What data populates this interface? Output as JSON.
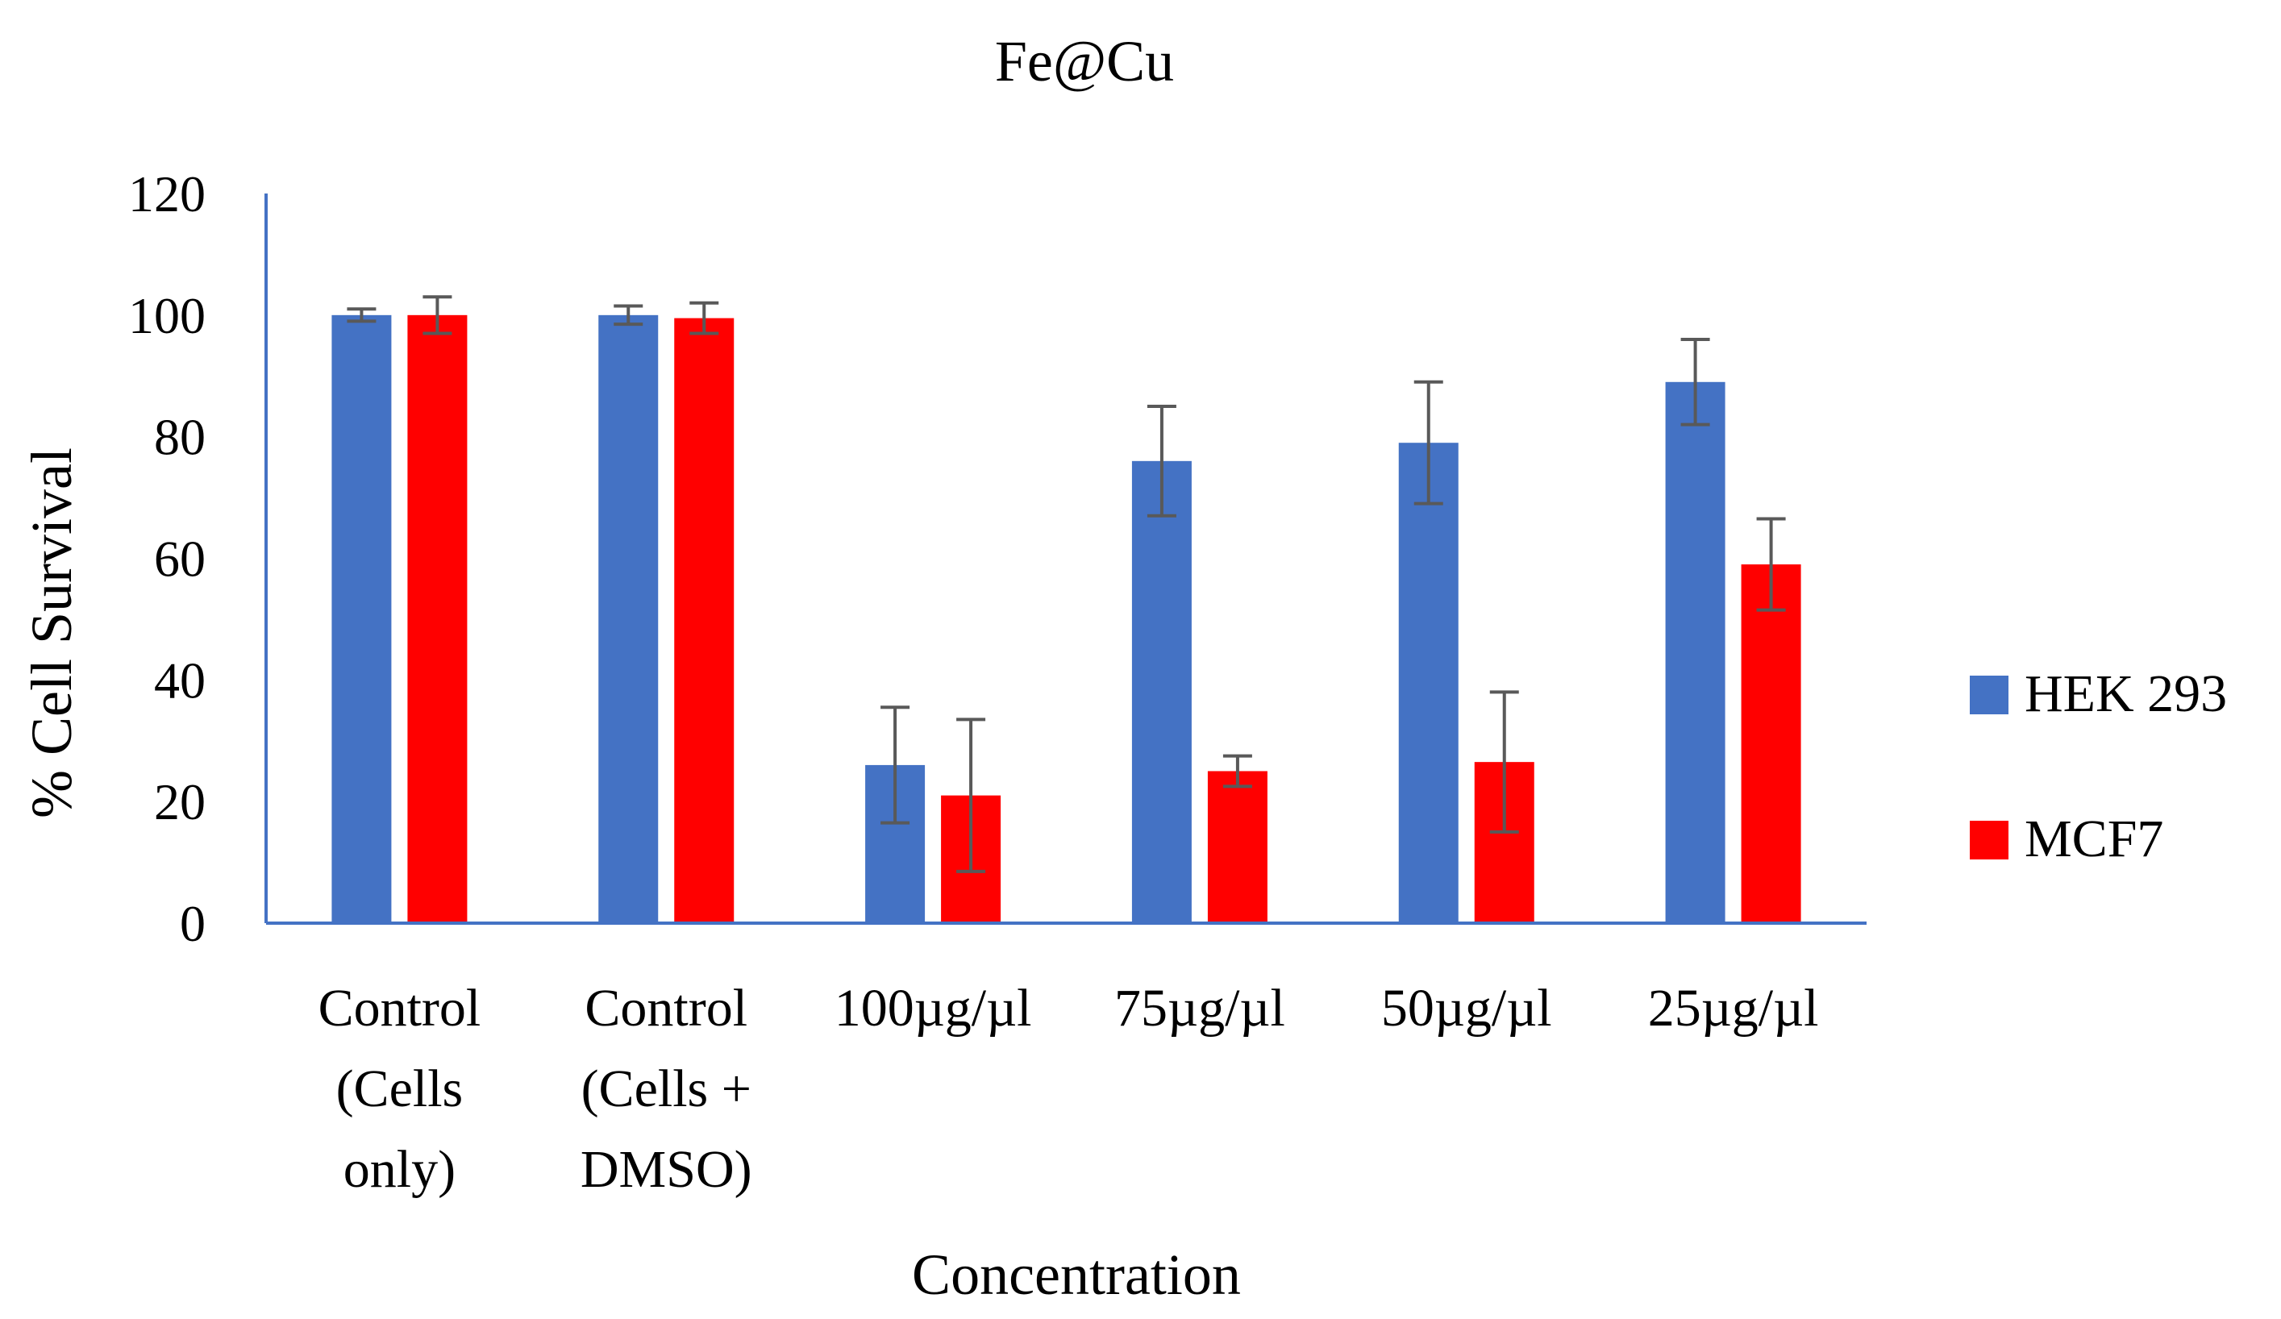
{
  "chart_data": {
    "type": "bar",
    "title": "Fe@Cu",
    "xlabel": "Concentration",
    "ylabel": "% Cell Survival",
    "ylim": [
      0,
      120
    ],
    "yticks": [
      0,
      20,
      40,
      60,
      80,
      100,
      120
    ],
    "categories": [
      [
        "Control",
        "(Cells",
        "only)"
      ],
      [
        "Control",
        "(Cells +",
        "DMSO)"
      ],
      [
        "100µg/µl"
      ],
      [
        "75µg/µl"
      ],
      [
        "50µg/µl"
      ],
      [
        "25µg/µl"
      ]
    ],
    "series": [
      {
        "name": "HEK 293",
        "color": "#4472C4",
        "values": [
          100,
          100,
          26,
          76,
          79,
          89
        ],
        "errors": [
          1,
          1.5,
          9.5,
          9,
          10,
          7
        ]
      },
      {
        "name": "MCF7",
        "color": "#FF0000",
        "values": [
          100,
          99.5,
          21,
          25,
          26.5,
          59
        ],
        "errors": [
          3,
          2.5,
          12.5,
          2.5,
          11.5,
          7.5
        ]
      }
    ],
    "grid": false,
    "legend_position": "right",
    "axis_color": "#4472C4",
    "errorbar_color": "#595959"
  }
}
